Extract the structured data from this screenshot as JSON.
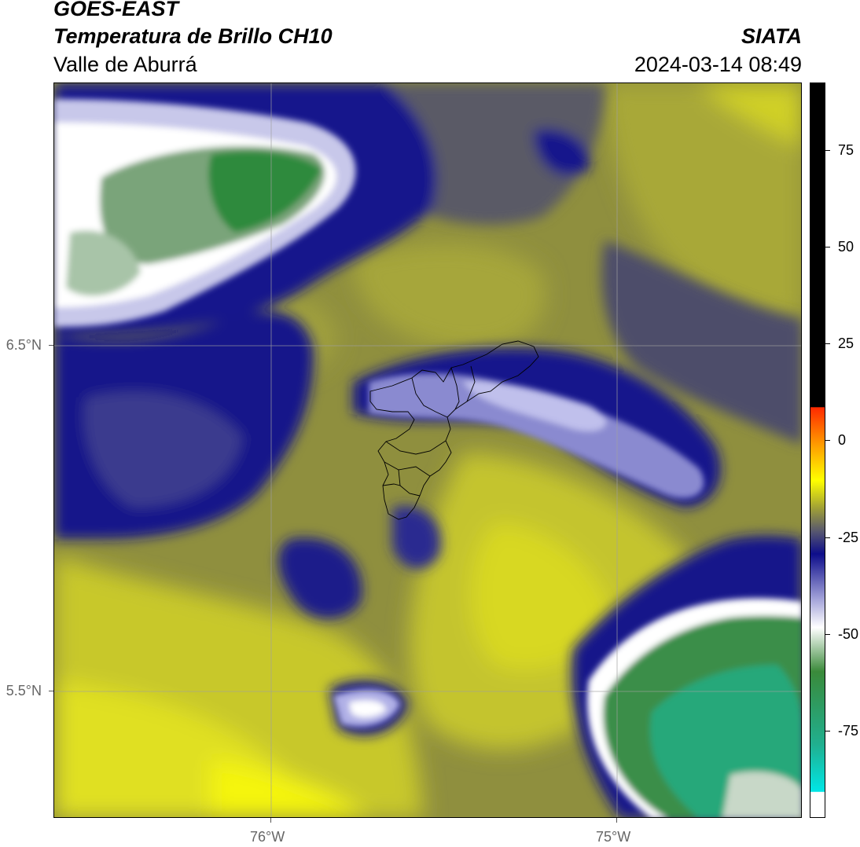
{
  "header": {
    "title": "GOES-EAST",
    "subtitle": "Temperatura de Brillo CH10",
    "region": "Valle de Aburrá",
    "organization": "SIATA",
    "timestamp": "2024-03-14 08:49"
  },
  "map": {
    "lat_labels": [
      "6.5°N",
      "5.5°N"
    ],
    "lon_labels": [
      "76°W",
      "75°W"
    ],
    "gridlines": true
  },
  "colorbar": {
    "tick_labels": [
      "75",
      "50",
      "25",
      "0",
      "-25",
      "-50",
      "-75"
    ],
    "colors": {
      "black_range": "#000000",
      "red": "#ff2a00",
      "orange": "#ff9900",
      "yellow": "#ffff00",
      "olive": "#9a9a3a",
      "dark_gray": "#555570",
      "navy": "#0d0d8a",
      "lavender": "#a0a0d8",
      "white": "#ffffff",
      "green": "#3a8a3a",
      "teal": "#20b090",
      "cyan": "#00e6e6"
    }
  }
}
